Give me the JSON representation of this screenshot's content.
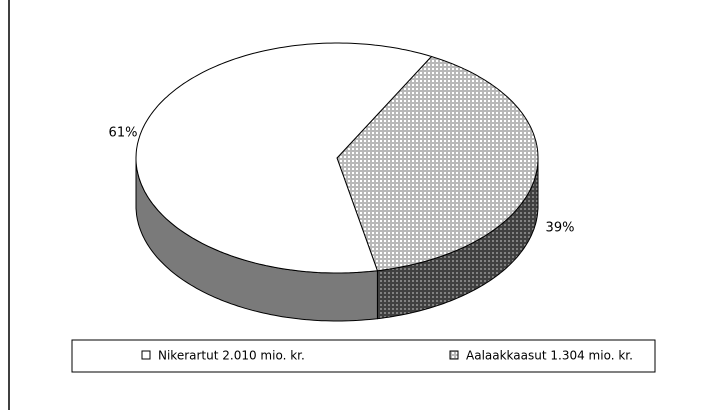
{
  "chart_data": {
    "type": "pie",
    "categories": [
      "Nikerartut 2.010 mio. kr.",
      "Aalaakkaasut 1.304 mio. kr."
    ],
    "values": [
      61,
      39
    ],
    "value_labels": [
      "61%",
      "39%"
    ],
    "colors": [
      "#ffffff",
      "#b8b8b8"
    ],
    "legend": "bottom"
  }
}
